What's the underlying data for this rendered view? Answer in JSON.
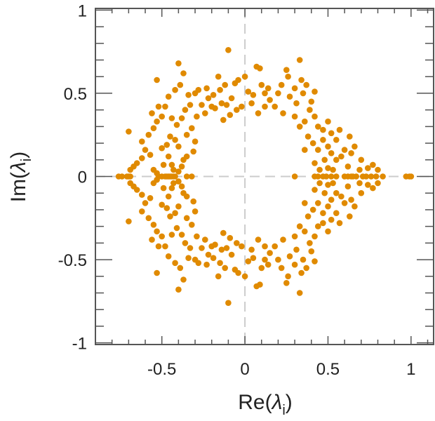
{
  "chart_data": {
    "type": "scatter",
    "title": "",
    "xlabel": "Re(λ_i)",
    "ylabel": "Im(λ_i)",
    "xlabel_parts": {
      "pre": "Re(",
      "sym": "λ",
      "sub": "i",
      "post": ")"
    },
    "ylabel_parts": {
      "pre": "Im(",
      "sym": "λ",
      "sub": "i",
      "post": ")"
    },
    "xlim": [
      -0.9,
      1.14
    ],
    "ylim": [
      -1.01,
      1.01
    ],
    "xticks": [
      {
        "value": -0.5,
        "label": "-0.5"
      },
      {
        "value": 0,
        "label": "0"
      },
      {
        "value": 0.5,
        "label": "0.5"
      },
      {
        "value": 1,
        "label": "1"
      }
    ],
    "yticks": [
      {
        "value": 1,
        "label": "1"
      },
      {
        "value": 0.5,
        "label": "0.5"
      },
      {
        "value": 0,
        "label": "0"
      },
      {
        "value": -0.5,
        "label": "-0.5"
      },
      {
        "value": -1,
        "label": "-1"
      }
    ],
    "minor_step": 0.1,
    "grid": false,
    "zero_lines": true,
    "colors": {
      "points": "#e08a00",
      "axes": "#555555",
      "zero_line": "#cccccc"
    },
    "symmetric_about_real_axis": true,
    "real_points": [
      -0.76,
      -0.74,
      -0.71,
      -0.69,
      -0.7,
      -0.52,
      -0.5,
      -0.48,
      -0.47,
      -0.46,
      -0.45,
      -0.44,
      -0.43,
      -0.42,
      -0.35,
      -0.32,
      0.3,
      0.42,
      0.44,
      0.47,
      0.49,
      0.52,
      0.55,
      0.6,
      0.62,
      0.64,
      0.65,
      0.67,
      0.71,
      0.73,
      0.76,
      0.79,
      0.83,
      0.97,
      0.99,
      1.0
    ],
    "upper_points": [
      [
        -0.7,
        0.27
      ],
      [
        -0.67,
        0.06
      ],
      [
        -0.65,
        0.08
      ],
      [
        -0.69,
        0.04
      ],
      [
        -0.62,
        0.11
      ],
      [
        -0.6,
        0.16
      ],
      [
        -0.57,
        0.13
      ],
      [
        -0.55,
        0.04
      ],
      [
        -0.53,
        0.02
      ],
      [
        -0.5,
        0.17
      ],
      [
        -0.47,
        0.19
      ],
      [
        -0.44,
        0.07
      ],
      [
        -0.43,
        0.04
      ],
      [
        -0.4,
        0.03
      ],
      [
        -0.38,
        0.06
      ],
      [
        -0.62,
        0.21
      ],
      [
        -0.58,
        0.25
      ],
      [
        -0.55,
        0.29
      ],
      [
        -0.53,
        0.33
      ],
      [
        -0.5,
        0.36
      ],
      [
        -0.56,
        0.38
      ],
      [
        -0.52,
        0.42
      ],
      [
        -0.48,
        0.42
      ],
      [
        -0.45,
        0.24
      ],
      [
        -0.42,
        0.22
      ],
      [
        -0.4,
        0.18
      ],
      [
        -0.37,
        0.1
      ],
      [
        -0.35,
        0.12
      ],
      [
        -0.46,
        0.12
      ],
      [
        -0.49,
        0.07
      ],
      [
        -0.53,
        0.58
      ],
      [
        -0.46,
        0.48
      ],
      [
        -0.42,
        0.52
      ],
      [
        -0.4,
        0.68
      ],
      [
        -0.37,
        0.62
      ],
      [
        -0.39,
        0.55
      ],
      [
        -0.34,
        0.49
      ],
      [
        -0.3,
        0.5
      ],
      [
        -0.28,
        0.52
      ],
      [
        -0.33,
        0.43
      ],
      [
        -0.36,
        0.4
      ],
      [
        -0.41,
        0.31
      ],
      [
        -0.38,
        0.35
      ],
      [
        -0.44,
        0.35
      ],
      [
        -0.32,
        0.29
      ],
      [
        -0.35,
        0.25
      ],
      [
        -0.3,
        0.21
      ],
      [
        -0.31,
        0.15
      ],
      [
        -0.23,
        0.53
      ],
      [
        -0.22,
        0.47
      ],
      [
        -0.19,
        0.49
      ],
      [
        -0.15,
        0.52
      ],
      [
        -0.12,
        0.55
      ],
      [
        -0.1,
        0.76
      ],
      [
        -0.16,
        0.6
      ],
      [
        -0.2,
        0.42
      ],
      [
        -0.26,
        0.43
      ],
      [
        -0.24,
        0.38
      ],
      [
        -0.29,
        0.36
      ],
      [
        -0.18,
        0.41
      ],
      [
        -0.14,
        0.44
      ],
      [
        -0.11,
        0.43
      ],
      [
        -0.08,
        0.47
      ],
      [
        -0.06,
        0.56
      ],
      [
        -0.04,
        0.58
      ],
      [
        -0.02,
        0.42
      ],
      [
        -0.05,
        0.4
      ],
      [
        -0.09,
        0.37
      ],
      [
        -0.13,
        0.34
      ],
      [
        0.0,
        0.6
      ],
      [
        0.02,
        0.51
      ],
      [
        0.05,
        0.49
      ],
      [
        0.07,
        0.66
      ],
      [
        0.09,
        0.65
      ],
      [
        0.1,
        0.55
      ],
      [
        0.12,
        0.5
      ],
      [
        0.14,
        0.53
      ],
      [
        0.15,
        0.46
      ],
      [
        0.18,
        0.42
      ],
      [
        0.2,
        0.5
      ],
      [
        0.22,
        0.55
      ],
      [
        0.25,
        0.64
      ],
      [
        0.26,
        0.6
      ],
      [
        0.27,
        0.48
      ],
      [
        0.3,
        0.53
      ],
      [
        0.31,
        0.44
      ],
      [
        0.33,
        0.7
      ],
      [
        0.34,
        0.58
      ],
      [
        0.35,
        0.5
      ],
      [
        0.37,
        0.55
      ],
      [
        0.4,
        0.45
      ],
      [
        0.42,
        0.51
      ],
      [
        0.04,
        0.44
      ],
      [
        0.08,
        0.38
      ],
      [
        0.12,
        0.42
      ],
      [
        0.23,
        0.38
      ],
      [
        0.3,
        0.36
      ],
      [
        0.33,
        0.3
      ],
      [
        0.36,
        0.33
      ],
      [
        0.39,
        0.4
      ],
      [
        0.42,
        0.36
      ],
      [
        0.44,
        0.3
      ],
      [
        0.47,
        0.28
      ],
      [
        0.5,
        0.33
      ],
      [
        0.52,
        0.26
      ],
      [
        0.55,
        0.22
      ],
      [
        0.57,
        0.28
      ],
      [
        0.38,
        0.24
      ],
      [
        0.41,
        0.2
      ],
      [
        0.44,
        0.16
      ],
      [
        0.47,
        0.22
      ],
      [
        0.5,
        0.18
      ],
      [
        0.52,
        0.14
      ],
      [
        0.55,
        0.1
      ],
      [
        0.58,
        0.12
      ],
      [
        0.6,
        0.16
      ],
      [
        0.62,
        0.06
      ],
      [
        0.64,
        0.14
      ],
      [
        0.66,
        0.18
      ],
      [
        0.69,
        0.04
      ],
      [
        0.7,
        0.1
      ],
      [
        0.74,
        0.05
      ],
      [
        0.77,
        0.07
      ],
      [
        0.8,
        0.04
      ],
      [
        0.48,
        0.1
      ],
      [
        0.5,
        0.05
      ],
      [
        0.53,
        0.04
      ],
      [
        0.45,
        0.04
      ],
      [
        0.42,
        0.08
      ],
      [
        0.36,
        0.16
      ],
      [
        0.63,
        0.24
      ]
    ]
  }
}
